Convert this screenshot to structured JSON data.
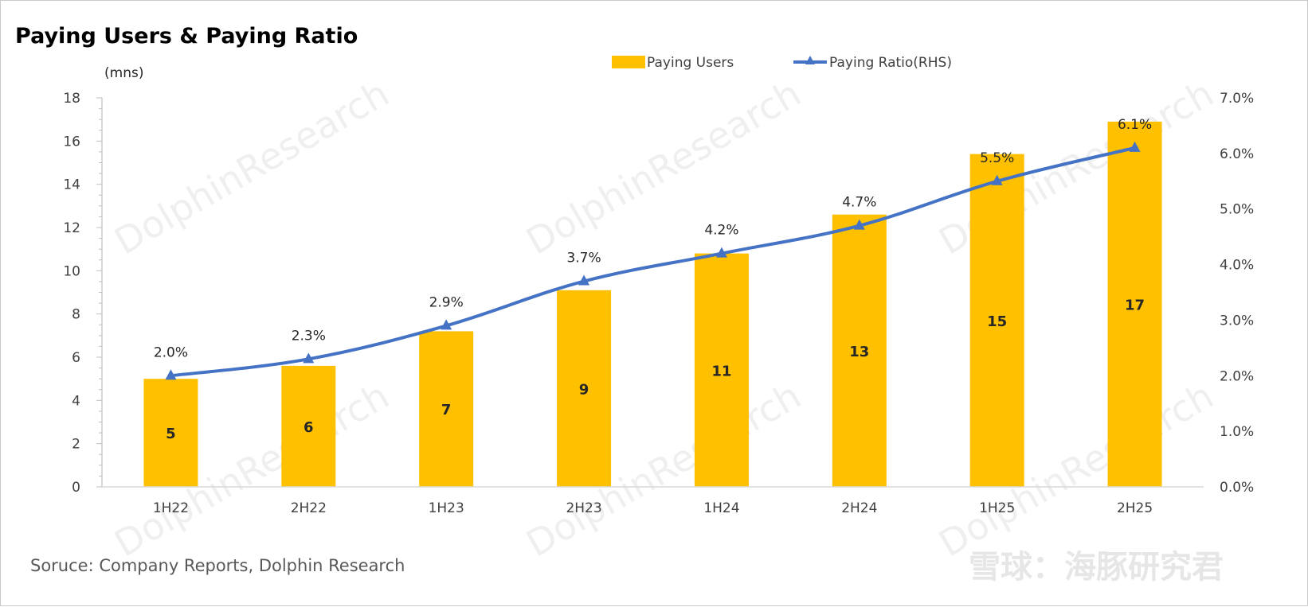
{
  "chart_data": {
    "type": "bar",
    "title": "Paying Users & Paying Ratio",
    "unit_label": "(mns)",
    "categories": [
      "1H22",
      "2H22",
      "1H23",
      "2H23",
      "1H24",
      "2H24",
      "1H25",
      "2H25"
    ],
    "series": [
      {
        "name": "Paying Users",
        "type": "bar",
        "axis": "left",
        "color": "#FFC000",
        "values": [
          5.0,
          5.6,
          7.2,
          9.1,
          10.8,
          12.6,
          15.4,
          16.9
        ],
        "labels": [
          "5",
          "6",
          "7",
          "9",
          "11",
          "13",
          "15",
          "17"
        ]
      },
      {
        "name": "Paying Ratio(RHS)",
        "type": "line",
        "axis": "right",
        "color": "#4472C4",
        "values": [
          2.0,
          2.3,
          2.9,
          3.7,
          4.2,
          4.7,
          5.5,
          6.1
        ],
        "labels": [
          "2.0%",
          "2.3%",
          "2.9%",
          "3.7%",
          "4.2%",
          "4.7%",
          "5.5%",
          "6.1%"
        ]
      }
    ],
    "y_left": {
      "min": 0,
      "max": 18,
      "ticks": [
        "0",
        "2",
        "4",
        "6",
        "8",
        "10",
        "12",
        "14",
        "16",
        "18"
      ]
    },
    "y_right": {
      "min": 0,
      "max": 7,
      "ticks": [
        "0.0%",
        "1.0%",
        "2.0%",
        "3.0%",
        "4.0%",
        "5.0%",
        "6.0%",
        "7.0%"
      ]
    },
    "legend_position": "top-center",
    "grid": false
  },
  "source": "Soruce: Company Reports, Dolphin Research",
  "watermark": {
    "text": "DolphinResearch",
    "brand": "雪球：海豚研究君"
  }
}
